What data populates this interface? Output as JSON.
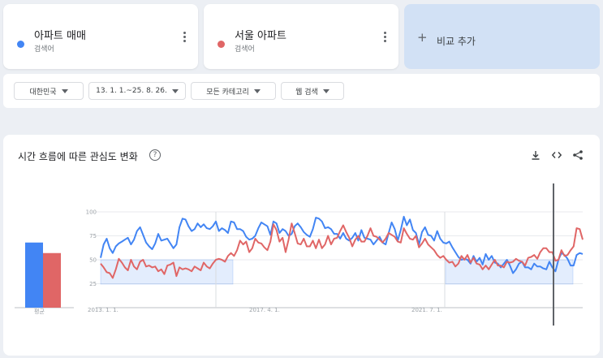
{
  "terms": [
    {
      "name": "아파트 매매",
      "subtitle": "검색어",
      "color": "#4285f4"
    },
    {
      "name": "서울 아파트",
      "subtitle": "검색어",
      "color": "#e06666"
    }
  ],
  "add_compare": {
    "label": "비교 추가",
    "icon": "plus-icon"
  },
  "filters": {
    "region": "대한민국",
    "date_range": "13. 1. 1.~25. 8. 26.",
    "category": "모든 카테고리",
    "search_type": "웹 검색"
  },
  "panel": {
    "title": "시간 흐름에 따른 관심도 변화",
    "help_icon": "help-icon",
    "tools": [
      "download-icon",
      "embed-code-icon",
      "share-icon"
    ]
  },
  "chart_data": {
    "type": "line",
    "ylim": [
      0,
      100
    ],
    "yticks": [
      25,
      50,
      75,
      100
    ],
    "xtick_labels": [
      "2013. 1. 1.",
      "2017. 4. 1.",
      "2021. 7. 1."
    ],
    "average_label": "평균",
    "averages": [
      68,
      57
    ],
    "series": [
      {
        "name": "아파트 매매",
        "color": "#4285f4",
        "values": [
          52,
          66,
          72,
          62,
          57,
          64,
          67,
          69,
          71,
          73,
          66,
          71,
          80,
          84,
          76,
          68,
          64,
          61,
          67,
          77,
          70,
          71,
          72,
          67,
          62,
          66,
          84,
          93,
          92,
          85,
          80,
          82,
          88,
          84,
          87,
          83,
          82,
          85,
          90,
          80,
          83,
          81,
          78,
          90,
          89,
          82,
          82,
          80,
          74,
          71,
          72,
          75,
          83,
          89,
          87,
          85,
          76,
          90,
          88,
          78,
          82,
          80,
          75,
          77,
          85,
          88,
          84,
          79,
          76,
          74,
          82,
          94,
          93,
          90,
          83,
          84,
          82,
          77,
          77,
          72,
          78,
          72,
          70,
          73,
          78,
          70,
          81,
          73,
          72,
          71,
          66,
          70,
          74,
          68,
          66,
          78,
          89,
          82,
          70,
          81,
          95,
          86,
          92,
          81,
          78,
          66,
          79,
          84,
          76,
          75,
          70,
          80,
          72,
          68,
          67,
          69,
          63,
          58,
          53,
          50,
          51,
          50,
          46,
          54,
          48,
          52,
          45,
          56,
          50,
          54,
          47,
          46,
          42,
          46,
          50,
          44,
          36,
          40,
          46,
          48,
          42,
          42,
          40,
          46,
          43,
          43,
          41,
          40,
          48,
          42,
          38,
          50,
          57,
          55,
          51,
          44,
          44,
          55,
          57,
          56
        ]
      },
      {
        "name": "서울 아파트",
        "color": "#e06666",
        "values": [
          46,
          42,
          37,
          36,
          31,
          40,
          51,
          47,
          42,
          39,
          50,
          43,
          40,
          48,
          50,
          43,
          44,
          42,
          43,
          38,
          40,
          35,
          44,
          45,
          47,
          33,
          42,
          40,
          41,
          40,
          38,
          43,
          41,
          39,
          47,
          43,
          41,
          46,
          50,
          51,
          50,
          48,
          54,
          57,
          54,
          60,
          70,
          66,
          69,
          58,
          62,
          72,
          68,
          67,
          63,
          60,
          69,
          87,
          81,
          69,
          73,
          58,
          71,
          88,
          78,
          67,
          66,
          72,
          64,
          64,
          70,
          62,
          71,
          62,
          66,
          75,
          66,
          72,
          73,
          80,
          86,
          79,
          73,
          64,
          71,
          75,
          69,
          69,
          75,
          83,
          75,
          74,
          71,
          68,
          72,
          78,
          76,
          74,
          69,
          68,
          83,
          77,
          72,
          71,
          75,
          63,
          67,
          72,
          66,
          63,
          60,
          55,
          52,
          54,
          50,
          47,
          48,
          43,
          46,
          54,
          50,
          55,
          47,
          52,
          46,
          45,
          40,
          44,
          40,
          45,
          50,
          44,
          44,
          42,
          48,
          47,
          48,
          51,
          49,
          48,
          44,
          52,
          53,
          55,
          51,
          58,
          62,
          62,
          58,
          58,
          49,
          50,
          60,
          54,
          55,
          60,
          64,
          83,
          82,
          71
        ]
      }
    ]
  }
}
